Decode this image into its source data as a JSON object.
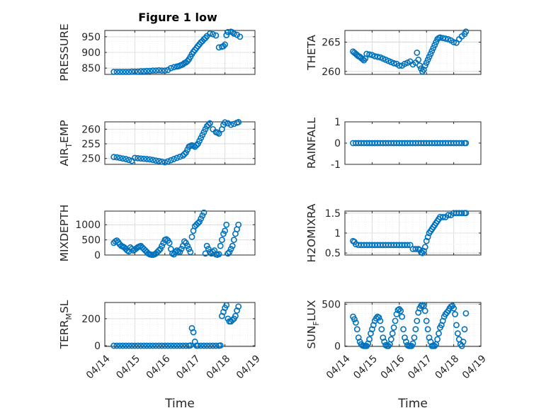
{
  "figure": {
    "title": "Figure 1 low",
    "xlabel": "Time",
    "date_ticks": [
      "04/14",
      "04/15",
      "04/16",
      "04/17",
      "04/18",
      "04/19"
    ],
    "marker_color": "#0072BD"
  },
  "chart_data": [
    {
      "type": "scatter",
      "ylabel": "PRESSURE",
      "ylim": [
        830,
        970
      ],
      "yticks": [
        "850",
        "900",
        "950"
      ],
      "ytick_values": [
        850,
        900,
        950
      ],
      "xlim": [
        "04/14",
        "04/19"
      ],
      "grid": true,
      "x": [
        0.3,
        0.4,
        0.5,
        0.6,
        0.7,
        0.8,
        0.9,
        1.0,
        1.1,
        1.2,
        1.3,
        1.4,
        1.5,
        1.6,
        1.7,
        1.8,
        1.9,
        2.0,
        2.1,
        2.2,
        2.3,
        2.4,
        2.45,
        2.5,
        2.55,
        2.6,
        2.65,
        2.7,
        2.75,
        2.8,
        2.85,
        2.9,
        2.95,
        3.0,
        3.05,
        3.1,
        3.15,
        3.2,
        3.25,
        3.3,
        3.35,
        3.4,
        3.5,
        3.6,
        3.7,
        3.8,
        3.9,
        3.95,
        4.0,
        4.05,
        4.1,
        4.2,
        4.25,
        4.3,
        4.4,
        4.5
      ],
      "y": [
        838,
        838,
        838,
        838,
        838,
        838,
        839,
        839,
        839,
        840,
        840,
        841,
        841,
        842,
        842,
        843,
        842,
        842,
        844,
        850,
        853,
        855,
        856,
        858,
        860,
        862,
        866,
        868,
        872,
        878,
        886,
        895,
        902,
        908,
        914,
        920,
        926,
        932,
        936,
        942,
        946,
        952,
        960,
        958,
        954,
        916,
        918,
        920,
        925,
        955,
        965,
        966,
        964,
        960,
        956,
        950
      ]
    },
    {
      "type": "scatter",
      "ylabel": "THETA",
      "ylim": [
        259.5,
        267
      ],
      "yticks": [
        "260",
        "265"
      ],
      "ytick_values": [
        260,
        265
      ],
      "xlim": [
        "04/14",
        "04/19"
      ],
      "grid": true,
      "x": [
        0.3,
        0.35,
        0.4,
        0.45,
        0.5,
        0.55,
        0.6,
        0.65,
        0.7,
        0.75,
        0.8,
        0.9,
        1.0,
        1.1,
        1.2,
        1.3,
        1.4,
        1.5,
        1.6,
        1.7,
        1.8,
        1.9,
        2.0,
        2.1,
        2.2,
        2.3,
        2.4,
        2.5,
        2.6,
        2.65,
        2.7,
        2.75,
        2.8,
        2.85,
        2.9,
        2.95,
        3.0,
        3.05,
        3.1,
        3.15,
        3.2,
        3.25,
        3.3,
        3.35,
        3.4,
        3.45,
        3.5,
        3.6,
        3.7,
        3.8,
        3.9,
        4.0,
        4.1,
        4.2,
        4.3,
        4.4,
        4.45
      ],
      "y": [
        263.4,
        263.2,
        263.0,
        262.8,
        262.6,
        262.5,
        262.3,
        262.1,
        261.9,
        262.2,
        263.0,
        262.9,
        262.8,
        262.6,
        262.5,
        262.4,
        262.2,
        262.0,
        261.8,
        261.6,
        261.4,
        261.3,
        261.0,
        261.0,
        261.3,
        261.5,
        261.7,
        261.2,
        261.5,
        263.2,
        262.0,
        261.0,
        260.5,
        260.0,
        260.3,
        261.0,
        261.5,
        262.0,
        262.5,
        263.0,
        263.5,
        264.0,
        264.5,
        265.0,
        265.5,
        265.7,
        265.8,
        265.7,
        265.6,
        265.5,
        265.3,
        265.0,
        264.9,
        265.5,
        266.0,
        266.4,
        266.8
      ]
    },
    {
      "type": "scatter",
      "ylabel": "AIR_TEMP",
      "ylim": [
        248,
        262.5
      ],
      "yticks": [
        "250",
        "255",
        "260"
      ],
      "ytick_values": [
        250,
        255,
        260
      ],
      "xlim": [
        "04/14",
        "04/19"
      ],
      "grid": true,
      "x": [
        0.3,
        0.4,
        0.5,
        0.6,
        0.7,
        0.8,
        0.9,
        1.0,
        1.1,
        1.2,
        1.3,
        1.4,
        1.5,
        1.6,
        1.7,
        1.8,
        1.9,
        2.0,
        2.1,
        2.2,
        2.3,
        2.4,
        2.5,
        2.6,
        2.65,
        2.7,
        2.75,
        2.8,
        2.85,
        2.9,
        2.95,
        3.0,
        3.05,
        3.1,
        3.15,
        3.2,
        3.25,
        3.3,
        3.35,
        3.4,
        3.45,
        3.5,
        3.6,
        3.7,
        3.75,
        3.8,
        3.9,
        3.95,
        4.0,
        4.1,
        4.2,
        4.3,
        4.4,
        4.45
      ],
      "y": [
        250.5,
        250.4,
        250.2,
        250.0,
        249.8,
        249.5,
        249.2,
        250.2,
        250.1,
        250.0,
        249.9,
        249.8,
        249.7,
        249.5,
        249.3,
        249.1,
        248.9,
        248.7,
        249.0,
        249.4,
        249.8,
        250.2,
        250.6,
        251.0,
        251.5,
        252.0,
        253.0,
        254.0,
        254.3,
        254.5,
        254.3,
        254.0,
        254.5,
        255.0,
        256.0,
        257.0,
        258.0,
        259.0,
        260.0,
        261.0,
        261.5,
        262.0,
        260.0,
        259.0,
        258.8,
        258.5,
        260.0,
        261.5,
        262.3,
        262.0,
        261.5,
        261.8,
        262.2,
        262.4
      ]
    },
    {
      "type": "scatter",
      "ylabel": "RAINFALL",
      "ylim": [
        -1,
        1
      ],
      "yticks": [
        "-1",
        "0",
        "1"
      ],
      "ytick_values": [
        -1,
        0,
        1
      ],
      "xlim": [
        "04/14",
        "04/19"
      ],
      "grid": false,
      "x": [
        0.3,
        0.4,
        0.5,
        0.6,
        0.7,
        0.8,
        0.9,
        1.0,
        1.1,
        1.2,
        1.3,
        1.4,
        1.5,
        1.6,
        1.7,
        1.8,
        1.9,
        2.0,
        2.1,
        2.2,
        2.3,
        2.4,
        2.5,
        2.6,
        2.7,
        2.8,
        2.9,
        3.0,
        3.1,
        3.2,
        3.3,
        3.4,
        3.5,
        3.6,
        3.7,
        3.8,
        3.9,
        4.0,
        4.1,
        4.2,
        4.3,
        4.4,
        4.45
      ],
      "y": [
        0,
        0,
        0,
        0,
        0,
        0,
        0,
        0,
        0,
        0,
        0,
        0,
        0,
        0,
        0,
        0,
        0,
        0,
        0,
        0,
        0,
        0,
        0,
        0,
        0,
        0,
        0,
        0,
        0,
        0,
        0,
        0,
        0,
        0,
        0,
        0,
        0,
        0,
        0,
        0,
        0,
        0,
        0
      ]
    },
    {
      "type": "scatter",
      "ylabel": "MIXDEPTH",
      "ylim": [
        0,
        1450
      ],
      "yticks": [
        "0",
        "500",
        "1000"
      ],
      "ytick_values": [
        0,
        500,
        1000
      ],
      "xlim": [
        "04/14",
        "04/19"
      ],
      "grid": true,
      "x": [
        0.3,
        0.35,
        0.4,
        0.45,
        0.5,
        0.55,
        0.6,
        0.65,
        0.7,
        0.75,
        0.8,
        0.85,
        0.9,
        0.95,
        1.0,
        1.05,
        1.1,
        1.15,
        1.2,
        1.25,
        1.3,
        1.35,
        1.4,
        1.45,
        1.5,
        1.55,
        1.6,
        1.65,
        1.7,
        1.75,
        1.8,
        1.85,
        1.9,
        1.95,
        2.0,
        2.05,
        2.1,
        2.15,
        2.2,
        2.25,
        2.3,
        2.35,
        2.4,
        2.45,
        2.5,
        2.55,
        2.6,
        2.65,
        2.7,
        2.75,
        2.8,
        2.85,
        2.9,
        2.95,
        3.0,
        3.05,
        3.1,
        3.15,
        3.2,
        3.25,
        3.3,
        3.35,
        3.4,
        3.45,
        3.5,
        3.55,
        3.6,
        3.65,
        3.7,
        3.75,
        3.8,
        3.85,
        3.9,
        3.95,
        4.0,
        4.05,
        4.1,
        4.15,
        4.2,
        4.25,
        4.3,
        4.35,
        4.4,
        4.45
      ],
      "y": [
        400,
        450,
        480,
        420,
        350,
        300,
        280,
        250,
        200,
        150,
        120,
        250,
        200,
        150,
        180,
        220,
        260,
        280,
        300,
        250,
        200,
        150,
        100,
        50,
        20,
        10,
        5,
        20,
        50,
        100,
        150,
        200,
        300,
        400,
        500,
        520,
        480,
        400,
        200,
        50,
        20,
        100,
        150,
        120,
        100,
        200,
        300,
        450,
        400,
        300,
        200,
        100,
        600,
        800,
        950,
        1000,
        1050,
        1100,
        1200,
        1300,
        1400,
        50,
        300,
        200,
        100,
        50,
        100,
        150,
        20,
        10,
        30,
        300,
        500,
        700,
        800,
        1000,
        50,
        100,
        200,
        300,
        500,
        700,
        850,
        1000
      ]
    },
    {
      "type": "scatter",
      "ylabel": "H2OMIXRA",
      "ylim": [
        0.45,
        1.55
      ],
      "yticks": [
        "0.5",
        "1",
        "1.5"
      ],
      "ytick_values": [
        0.5,
        1,
        1.5
      ],
      "xlim": [
        "04/14",
        "04/19"
      ],
      "grid": true,
      "x": [
        0.3,
        0.35,
        0.4,
        0.5,
        0.6,
        0.7,
        0.8,
        0.9,
        1.0,
        1.1,
        1.2,
        1.3,
        1.4,
        1.5,
        1.6,
        1.7,
        1.8,
        1.9,
        2.0,
        2.1,
        2.2,
        2.3,
        2.4,
        2.5,
        2.6,
        2.7,
        2.75,
        2.8,
        2.85,
        2.9,
        2.95,
        3.0,
        3.05,
        3.1,
        3.15,
        3.2,
        3.25,
        3.3,
        3.35,
        3.4,
        3.45,
        3.5,
        3.6,
        3.7,
        3.8,
        3.9,
        4.0,
        4.1,
        4.2,
        4.3,
        4.4,
        4.45
      ],
      "y": [
        0.8,
        0.78,
        0.72,
        0.7,
        0.7,
        0.7,
        0.7,
        0.7,
        0.7,
        0.7,
        0.7,
        0.7,
        0.7,
        0.7,
        0.7,
        0.7,
        0.7,
        0.7,
        0.7,
        0.7,
        0.7,
        0.7,
        0.7,
        0.6,
        0.6,
        0.6,
        0.58,
        0.52,
        0.5,
        0.55,
        0.65,
        0.8,
        0.9,
        1.0,
        1.05,
        1.1,
        1.15,
        1.2,
        1.25,
        1.3,
        1.35,
        1.4,
        1.4,
        1.4,
        1.45,
        1.45,
        1.5,
        1.5,
        1.5,
        1.5,
        1.5,
        1.5
      ]
    },
    {
      "type": "scatter",
      "ylabel": "TERR_MSL",
      "ylim": [
        -5,
        320
      ],
      "yticks": [
        "0",
        "200"
      ],
      "ytick_values": [
        0,
        200
      ],
      "xlim": [
        "04/14",
        "04/19"
      ],
      "grid": true,
      "x": [
        0.3,
        0.4,
        0.5,
        0.6,
        0.7,
        0.8,
        0.9,
        1.0,
        1.1,
        1.2,
        1.3,
        1.4,
        1.5,
        1.6,
        1.7,
        1.8,
        1.9,
        2.0,
        2.1,
        2.2,
        2.3,
        2.4,
        2.5,
        2.6,
        2.7,
        2.8,
        2.85,
        2.9,
        2.95,
        3.0,
        3.05,
        3.1,
        3.2,
        3.3,
        3.4,
        3.5,
        3.6,
        3.7,
        3.8,
        3.85,
        3.9,
        3.95,
        4.0,
        4.05,
        4.1,
        4.15,
        4.2,
        4.25,
        4.3,
        4.35,
        4.4,
        4.45
      ],
      "y": [
        0,
        0,
        0,
        0,
        0,
        0,
        0,
        0,
        0,
        0,
        0,
        0,
        0,
        0,
        0,
        0,
        0,
        0,
        0,
        0,
        0,
        0,
        0,
        0,
        0,
        0,
        2,
        130,
        100,
        30,
        0,
        0,
        0,
        0,
        0,
        0,
        0,
        0,
        0,
        2,
        220,
        250,
        280,
        300,
        200,
        180,
        180,
        190,
        200,
        220,
        260,
        290
      ]
    },
    {
      "type": "scatter",
      "ylabel": "SUN_FLUX",
      "ylim": [
        -5,
        520
      ],
      "yticks": [
        "0",
        "500"
      ],
      "ytick_values": [
        0,
        500
      ],
      "xlim": [
        "04/14",
        "04/19"
      ],
      "grid": true,
      "x": [
        0.3,
        0.35,
        0.4,
        0.45,
        0.5,
        0.55,
        0.6,
        0.65,
        0.7,
        0.75,
        0.8,
        0.85,
        0.9,
        0.95,
        1.0,
        1.05,
        1.1,
        1.15,
        1.2,
        1.25,
        1.3,
        1.35,
        1.4,
        1.45,
        1.5,
        1.55,
        1.6,
        1.65,
        1.7,
        1.75,
        1.8,
        1.85,
        1.9,
        1.95,
        2.0,
        2.05,
        2.1,
        2.15,
        2.2,
        2.25,
        2.3,
        2.35,
        2.4,
        2.45,
        2.5,
        2.55,
        2.6,
        2.65,
        2.7,
        2.75,
        2.8,
        2.85,
        2.9,
        2.95,
        3.0,
        3.05,
        3.1,
        3.15,
        3.2,
        3.25,
        3.3,
        3.35,
        3.4,
        3.45,
        3.5,
        3.55,
        3.6,
        3.65,
        3.7,
        3.75,
        3.8,
        3.85,
        3.9,
        3.95,
        4.0,
        4.05,
        4.1,
        4.15,
        4.2,
        4.25,
        4.3,
        4.35,
        4.4,
        4.45
      ],
      "y": [
        350,
        320,
        280,
        200,
        100,
        50,
        20,
        5,
        0,
        0,
        0,
        30,
        80,
        150,
        200,
        250,
        300,
        330,
        350,
        340,
        300,
        200,
        100,
        50,
        10,
        0,
        0,
        20,
        80,
        150,
        220,
        300,
        380,
        430,
        440,
        420,
        350,
        200,
        100,
        50,
        10,
        0,
        0,
        0,
        30,
        100,
        200,
        300,
        400,
        450,
        480,
        490,
        480,
        420,
        300,
        200,
        100,
        50,
        0,
        0,
        0,
        20,
        80,
        150,
        220,
        250,
        300,
        350,
        380,
        400,
        420,
        450,
        470,
        480,
        450,
        380,
        250,
        150,
        80,
        20,
        0,
        50,
        200,
        390
      ]
    }
  ]
}
